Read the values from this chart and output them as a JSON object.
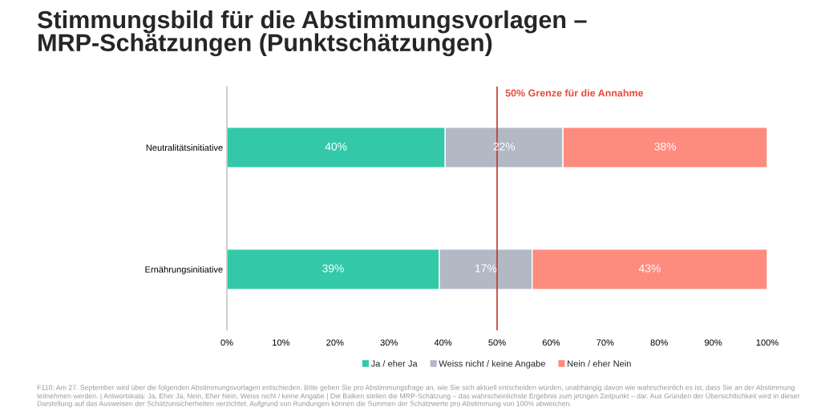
{
  "chart_data": {
    "type": "bar",
    "orientation": "horizontal",
    "stacked": true,
    "title": "Stimmungsbild für die Abstimmungsvorlagen –\nMRP-Schätzungen (Punktschätzungen)",
    "categories": [
      "Neutralitätsinitiative",
      "Ernährungsinitiative"
    ],
    "series": [
      {
        "name": "Ja / eher Ja",
        "color": "#33c9a8",
        "values": [
          40.4,
          39.3
        ],
        "value_labels": [
          "40%",
          "39%"
        ]
      },
      {
        "name": "Weiss nicht / keine Angabe",
        "color": "#b2b8c4",
        "values": [
          21.8,
          17.2
        ],
        "value_labels": [
          "22%",
          "17%"
        ]
      },
      {
        "name": "Nein / eher Nein",
        "color": "#fd8b7e",
        "values": [
          37.8,
          43.5
        ],
        "value_labels": [
          "38%",
          "43%"
        ]
      }
    ],
    "xlim": [
      0,
      100
    ],
    "xticks": [
      {
        "value": 0,
        "label": "0%"
      },
      {
        "value": 10,
        "label": "10%"
      },
      {
        "value": 20,
        "label": "20%"
      },
      {
        "value": 30,
        "label": "30%"
      },
      {
        "value": 40,
        "label": "40%"
      },
      {
        "value": 50,
        "label": "50%"
      },
      {
        "value": 60,
        "label": "60%"
      },
      {
        "value": 70,
        "label": "70%"
      },
      {
        "value": 80,
        "label": "80%"
      },
      {
        "value": 90,
        "label": "90%"
      },
      {
        "value": 100,
        "label": "100%"
      }
    ],
    "ref_lines": [
      {
        "axis": "x",
        "value": 50,
        "label": "50% Grenze für die Annahme",
        "color": "#c0392b"
      }
    ],
    "legend": "bottom",
    "grid": false,
    "annotations": [
      "F110: Am 27. September wird über die folgenden Abstimmungsvorlagen entschieden. Bitte geben Sie pro Abstimmungsfrage an, wie Sie sich aktuell entscheiden würden, unabhängig davon wie wahrscheinlich es ist, dass Sie an der Abstimmung teilnehmen werden. | Antwortskala: Ja, Eher Ja, Nein, Eher Nein, Weiss nicht / keine Angabe | Die Balken stellen die MRP-Schätzung – das wahrscheinlichste Ergebnis zum jetzigen Zeitpunkt – dar. Aus Gründen der Übersichtlichkeit wird in dieser Darstellung auf das Ausweisen der Schätzunsicherheiten verzichtet. Aufgrund von Rundungen können die Summen der Schätzwerte pro Abstimmung von 100% abweichen."
    ]
  }
}
